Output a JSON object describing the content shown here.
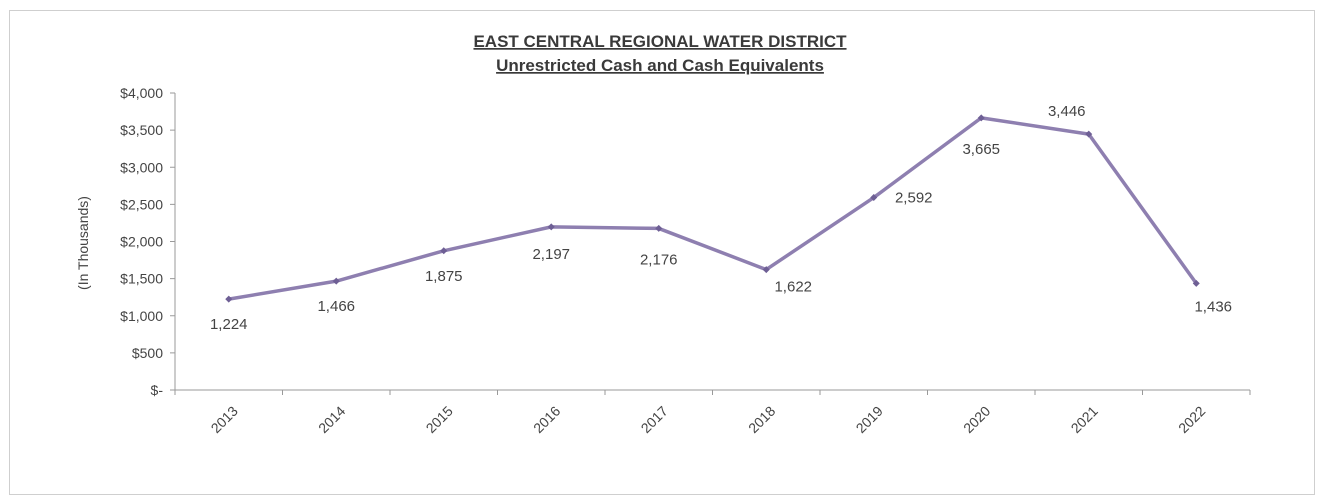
{
  "chart_data": {
    "type": "line",
    "title": "EAST CENTRAL REGIONAL WATER DISTRICT",
    "subtitle": "Unrestricted Cash and Cash Equivalents",
    "ylabel": "(In Thousands)",
    "xlabel": "",
    "categories": [
      "2013",
      "2014",
      "2015",
      "2016",
      "2017",
      "2018",
      "2019",
      "2020",
      "2021",
      "2022"
    ],
    "series": [
      {
        "values": [
          1224,
          1466,
          1875,
          2197,
          2176,
          1622,
          2592,
          3665,
          3446,
          1436
        ],
        "labels": [
          "1,224",
          "1,466",
          "1,875",
          "2,197",
          "2,176",
          "1,622",
          "2,592",
          "3,665",
          "3,446",
          "1,436"
        ]
      }
    ],
    "ylim": [
      0,
      4000
    ],
    "yticks": [
      0,
      500,
      1000,
      1500,
      2000,
      2500,
      3000,
      3500,
      4000
    ],
    "ytick_labels": [
      "$-",
      "$500",
      "$1,000",
      "$1,500",
      "$2,000",
      "$2,500",
      "$3,000",
      "$3,500",
      "$4,000"
    ],
    "grid": false,
    "line_color": "#8e7fb0"
  }
}
